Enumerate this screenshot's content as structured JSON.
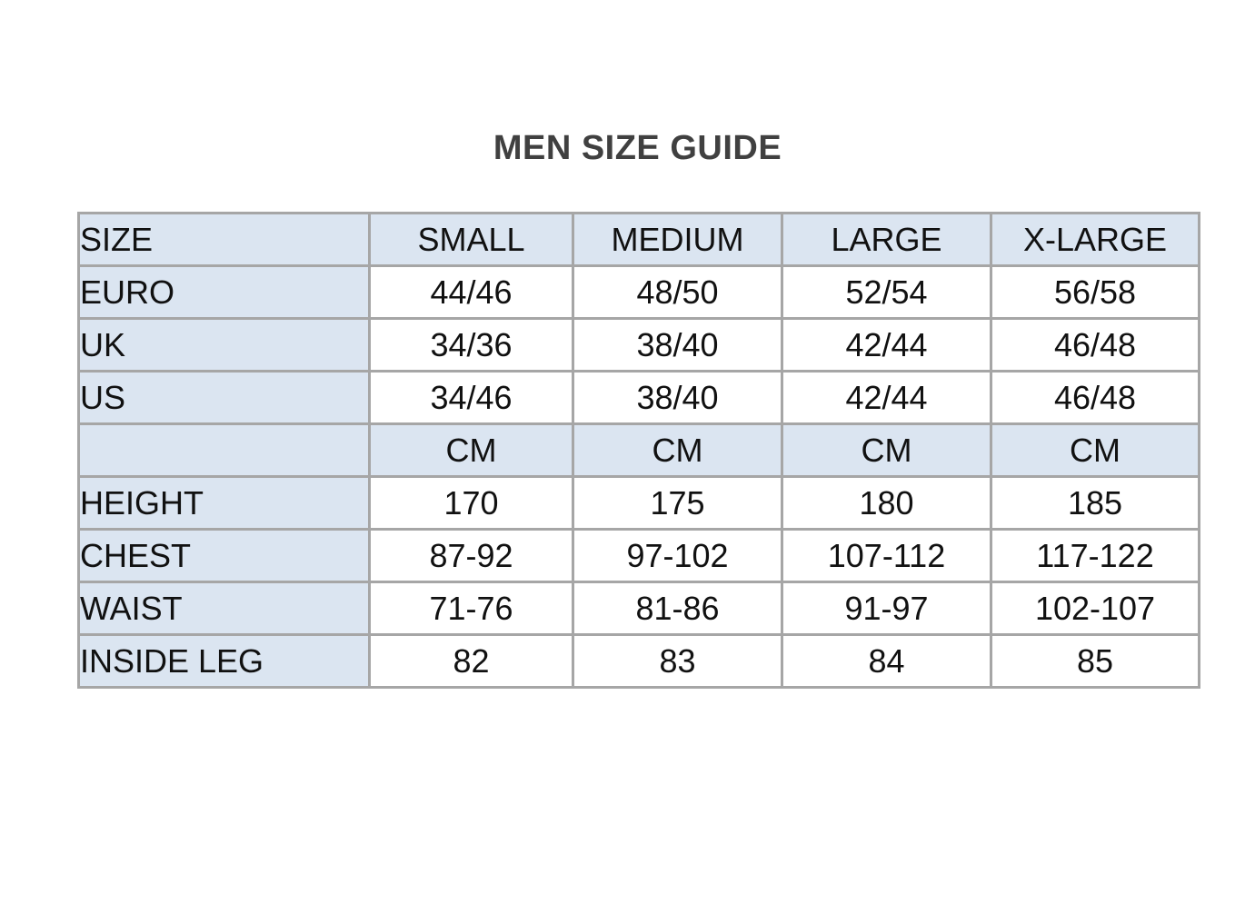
{
  "page": {
    "title": "MEN SIZE GUIDE"
  },
  "colors": {
    "page_bg": "#ffffff",
    "shaded_cell_bg": "#dbe5f1",
    "table_border": "#a6a6a6",
    "table_text": "#111111",
    "title_text": "#404040"
  },
  "size_table": {
    "headers": [
      "SIZE",
      "SMALL",
      "MEDIUM",
      "LARGE",
      "X-LARGE"
    ],
    "unit_row_label": "",
    "rows": [
      {
        "label": "EURO",
        "values": [
          "44/46",
          "48/50",
          "52/54",
          "56/58"
        ],
        "shaded": false
      },
      {
        "label": "UK",
        "values": [
          "34/36",
          "38/40",
          "42/44",
          "46/48"
        ],
        "shaded": false
      },
      {
        "label": "US",
        "values": [
          "34/46",
          "38/40",
          "42/44",
          "46/48"
        ],
        "shaded": false
      },
      {
        "label": "",
        "values": [
          "CM",
          "CM",
          "CM",
          "CM"
        ],
        "shaded": true
      },
      {
        "label": "HEIGHT",
        "values": [
          "170",
          "175",
          "180",
          "185"
        ],
        "shaded": false
      },
      {
        "label": "CHEST",
        "values": [
          "87-92",
          "97-102",
          "107-112",
          "117-122"
        ],
        "shaded": false
      },
      {
        "label": "WAIST",
        "values": [
          "71-76",
          "81-86",
          "91-97",
          "102-107"
        ],
        "shaded": false
      },
      {
        "label": "INSIDE LEG",
        "values": [
          "82",
          "83",
          "84",
          "85"
        ],
        "shaded": false
      }
    ]
  }
}
